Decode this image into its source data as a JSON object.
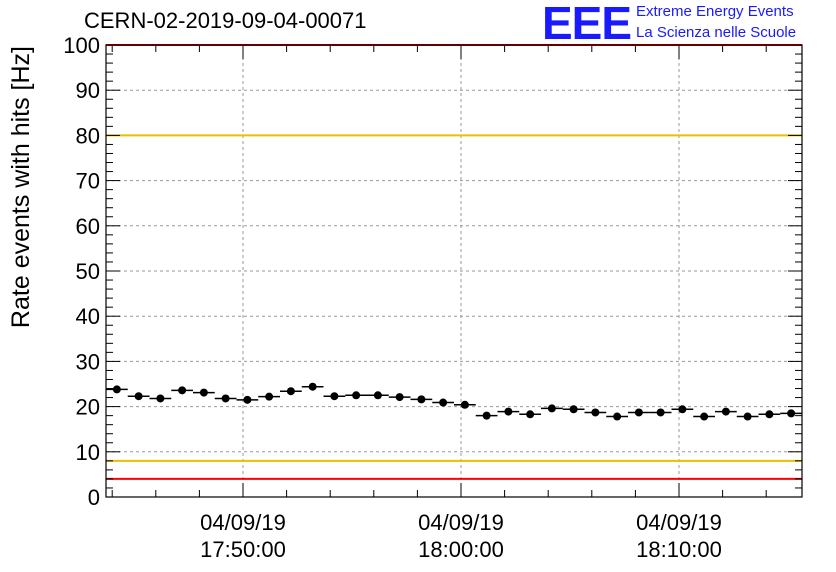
{
  "header": {
    "run_title": "CERN-02-2019-09-04-00071",
    "logo_text": "EEE",
    "logo_line1": "Extreme Energy Events",
    "logo_line2": "La Scienza nelle Scuole"
  },
  "colors": {
    "logo": "#1a1aff",
    "upper_limit": "#e8c000",
    "lower_limit": "#e8c000",
    "red_line": "#ff0000",
    "markers": "#000000"
  },
  "chart_data": {
    "type": "scatter",
    "title": "CERN-02-2019-09-04-00071",
    "ylabel": "Rate events with hits [Hz]",
    "xlabel": "",
    "ylim": [
      0,
      100
    ],
    "y_ticks": [
      0,
      10,
      20,
      30,
      40,
      50,
      60,
      70,
      80,
      90,
      100
    ],
    "x_ticks": [
      {
        "date": "04/09/19",
        "time": "17:50:00"
      },
      {
        "date": "04/09/19",
        "time": "18:00:00"
      },
      {
        "date": "04/09/19",
        "time": "18:10:00"
      }
    ],
    "grid": true,
    "reference_lines": [
      {
        "y": 80,
        "color": "#e8c000"
      },
      {
        "y": 8,
        "color": "#e8c000"
      },
      {
        "y": 4,
        "color": "#ff0000"
      },
      {
        "y": 100,
        "color": "#ff0000"
      }
    ],
    "series": [
      {
        "values": [
          23.8,
          22.3,
          21.8,
          23.6,
          23.1,
          21.8,
          21.5,
          22.2,
          23.4,
          24.4,
          22.3,
          22.5,
          22.5,
          22.1,
          21.6,
          20.9,
          20.4,
          18.0,
          18.9,
          18.3,
          19.6,
          19.4,
          18.7,
          17.8,
          18.7,
          18.7,
          19.4,
          17.8,
          18.9,
          17.8,
          18.3,
          18.5
        ]
      }
    ]
  }
}
